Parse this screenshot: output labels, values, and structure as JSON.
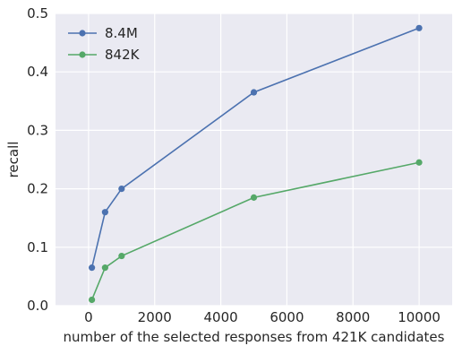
{
  "chart_data": {
    "type": "line",
    "title": "",
    "xlabel": "number of the selected responses from 421K candidates",
    "ylabel": "recall",
    "xlim": [
      -1000,
      11000
    ],
    "ylim": [
      0,
      0.5
    ],
    "xticks": [
      0,
      2000,
      4000,
      6000,
      8000,
      10000
    ],
    "xtick_labels": [
      "0",
      "2000",
      "4000",
      "6000",
      "8000",
      "10000"
    ],
    "yticks": [
      0.0,
      0.1,
      0.2,
      0.3,
      0.4,
      0.5
    ],
    "ytick_labels": [
      "0.0",
      "0.1",
      "0.2",
      "0.3",
      "0.4",
      "0.5"
    ],
    "grid": true,
    "legend_position": "top-left",
    "series": [
      {
        "name": "8.4M",
        "color": "#4C72B0",
        "x": [
          100,
          500,
          1000,
          5000,
          10000
        ],
        "y": [
          0.065,
          0.16,
          0.2,
          0.365,
          0.475
        ]
      },
      {
        "name": "842K",
        "color": "#55A868",
        "x": [
          100,
          500,
          1000,
          5000,
          10000
        ],
        "y": [
          0.01,
          0.065,
          0.085,
          0.185,
          0.245
        ]
      }
    ]
  },
  "style": {
    "plot_background": "#EAEAF2",
    "grid_color": "#FFFFFF",
    "text_color": "#262626"
  }
}
